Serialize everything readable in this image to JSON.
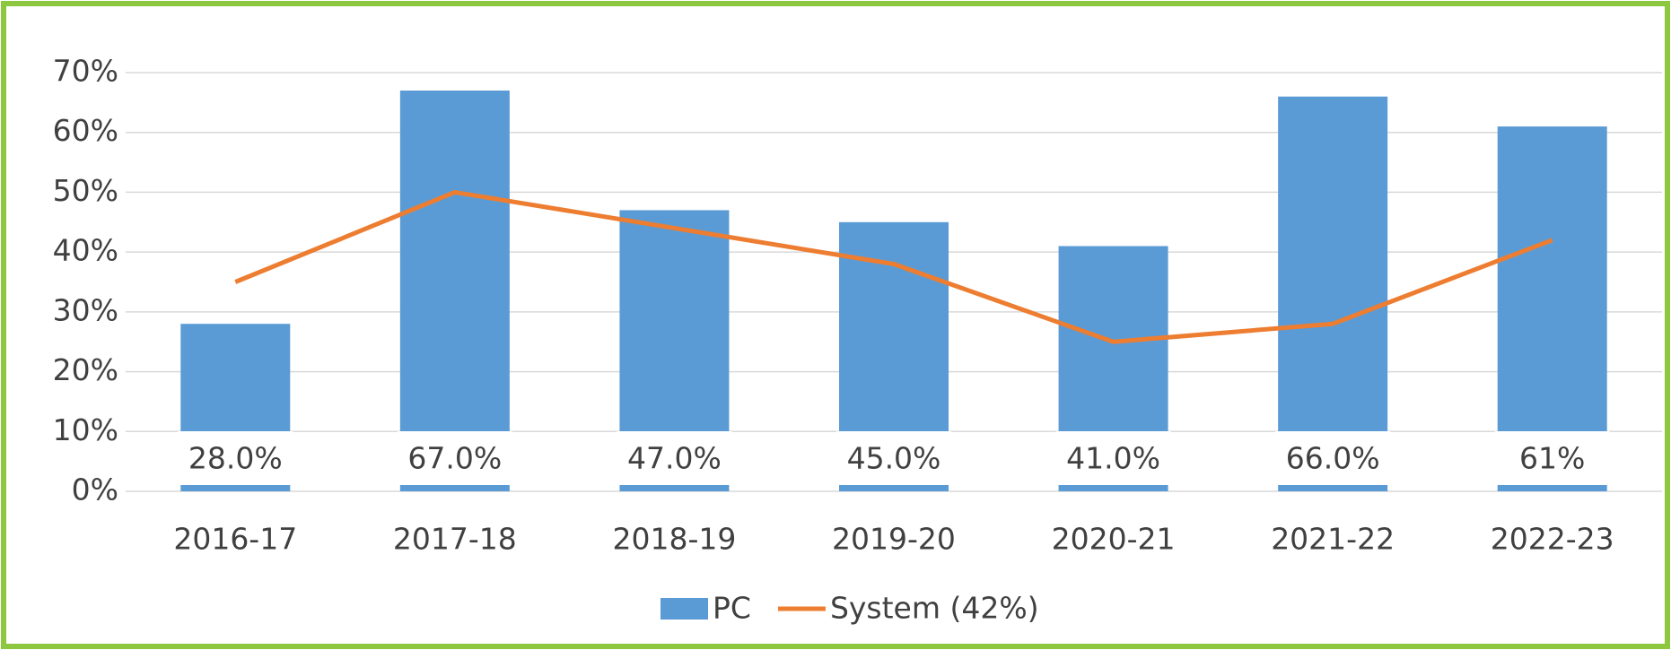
{
  "chart_data": {
    "type": "bar",
    "categories": [
      "2016-17",
      "2017-18",
      "2018-19",
      "2019-20",
      "2020-21",
      "2021-22",
      "2022-23"
    ],
    "series": [
      {
        "name": "PC",
        "type": "bar",
        "color": "#5b9bd5",
        "values": [
          28,
          67,
          47,
          45,
          41,
          66,
          61
        ],
        "value_labels": [
          "28.0%",
          "67.0%",
          "47.0%",
          "45.0%",
          "41.0%",
          "66.0%",
          "61%"
        ]
      },
      {
        "name": "System (42%)",
        "type": "line",
        "color": "#ed7d31",
        "values": [
          35,
          50,
          44,
          38,
          25,
          28,
          42
        ]
      }
    ],
    "ylim": [
      0,
      70
    ],
    "yticks": [
      {
        "value": 0,
        "label": "0%"
      },
      {
        "value": 10,
        "label": "10%"
      },
      {
        "value": 20,
        "label": "20%"
      },
      {
        "value": 30,
        "label": "30%"
      },
      {
        "value": 40,
        "label": "40%"
      },
      {
        "value": 50,
        "label": "50%"
      },
      {
        "value": 60,
        "label": "60%"
      },
      {
        "value": 70,
        "label": "70%"
      }
    ],
    "grid": true,
    "legend": "bottom"
  }
}
